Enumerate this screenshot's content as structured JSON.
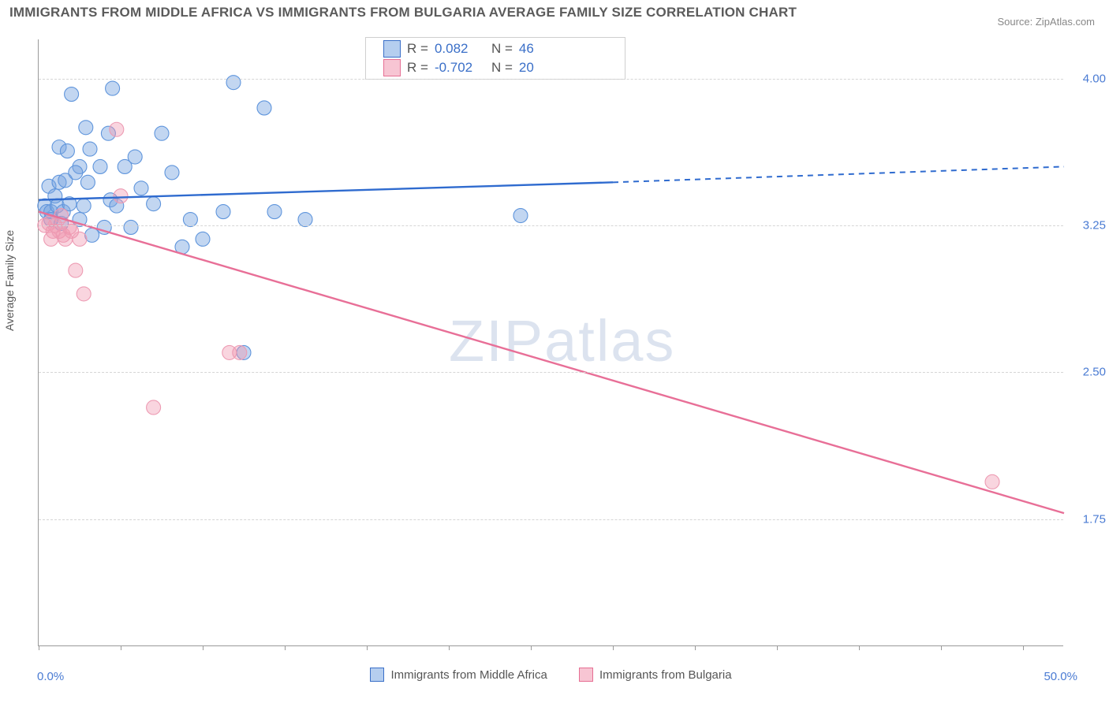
{
  "title": "IMMIGRANTS FROM MIDDLE AFRICA VS IMMIGRANTS FROM BULGARIA AVERAGE FAMILY SIZE CORRELATION CHART",
  "source": "Source: ZipAtlas.com",
  "watermark_a": "ZIP",
  "watermark_b": "atlas",
  "ylabel": "Average Family Size",
  "chart": {
    "type": "scatter",
    "background_color": "#ffffff",
    "x_min": 0.0,
    "x_max": 50.0,
    "x_min_label": "0.0%",
    "x_max_label": "50.0%",
    "x_tick_positions": [
      0,
      4,
      8,
      12,
      16,
      20,
      24,
      28,
      32,
      36,
      40,
      44,
      48
    ],
    "y_min": 1.1,
    "y_max": 4.2,
    "y_ticks": [
      4.0,
      3.25,
      2.5,
      1.75
    ],
    "y_tick_labels": [
      "4.00",
      "3.25",
      "2.50",
      "1.75"
    ],
    "grid_color": "#d5d5d5",
    "axis_color": "#9a9a9a",
    "tick_color": "#4a7bd3",
    "marker_radius": 9,
    "series": [
      {
        "name": "Immigrants from Middle Africa",
        "color_fill": "rgba(120,165,225,0.45)",
        "color_stroke": "#5f95dc",
        "line_color": "#2f6bcf",
        "r_label": "0.082",
        "n_label": "46",
        "trend": {
          "x1": 0,
          "y1": 3.38,
          "x_solid_end": 28,
          "y_solid_end": 3.47,
          "x2": 50,
          "y2": 3.55
        },
        "points": [
          [
            0.3,
            3.35
          ],
          [
            0.4,
            3.32
          ],
          [
            0.5,
            3.45
          ],
          [
            0.6,
            3.32
          ],
          [
            0.6,
            3.28
          ],
          [
            0.8,
            3.4
          ],
          [
            0.9,
            3.35
          ],
          [
            1.0,
            3.65
          ],
          [
            1.0,
            3.47
          ],
          [
            1.1,
            3.26
          ],
          [
            1.2,
            3.32
          ],
          [
            1.3,
            3.48
          ],
          [
            1.4,
            3.63
          ],
          [
            1.5,
            3.36
          ],
          [
            1.6,
            3.92
          ],
          [
            2.0,
            3.55
          ],
          [
            2.2,
            3.35
          ],
          [
            2.3,
            3.75
          ],
          [
            2.4,
            3.47
          ],
          [
            2.5,
            3.64
          ],
          [
            2.6,
            3.2
          ],
          [
            3.0,
            3.55
          ],
          [
            3.2,
            3.24
          ],
          [
            3.4,
            3.72
          ],
          [
            3.5,
            3.38
          ],
          [
            3.6,
            3.95
          ],
          [
            3.8,
            3.35
          ],
          [
            4.2,
            3.55
          ],
          [
            4.5,
            3.24
          ],
          [
            4.7,
            3.6
          ],
          [
            5.0,
            3.44
          ],
          [
            5.6,
            3.36
          ],
          [
            6.0,
            3.72
          ],
          [
            6.5,
            3.52
          ],
          [
            7.0,
            3.14
          ],
          [
            7.4,
            3.28
          ],
          [
            8.0,
            3.18
          ],
          [
            9.0,
            3.32
          ],
          [
            9.5,
            3.98
          ],
          [
            10.0,
            2.6
          ],
          [
            11.0,
            3.85
          ],
          [
            11.5,
            3.32
          ],
          [
            13.0,
            3.28
          ],
          [
            23.5,
            3.3
          ],
          [
            2.0,
            3.28
          ],
          [
            1.8,
            3.52
          ]
        ]
      },
      {
        "name": "Immigrants from Bulgaria",
        "color_fill": "rgba(240,150,175,0.40)",
        "color_stroke": "#ed9bb3",
        "line_color": "#e86f97",
        "r_label": "-0.702",
        "n_label": "20",
        "trend": {
          "x1": 0,
          "y1": 3.32,
          "x_solid_end": 50,
          "y_solid_end": 1.78,
          "x2": 50,
          "y2": 1.78
        },
        "points": [
          [
            0.3,
            3.25
          ],
          [
            0.5,
            3.26
          ],
          [
            0.6,
            3.18
          ],
          [
            0.7,
            3.22
          ],
          [
            0.8,
            3.25
          ],
          [
            1.0,
            3.22
          ],
          [
            1.1,
            3.3
          ],
          [
            1.2,
            3.2
          ],
          [
            1.3,
            3.18
          ],
          [
            1.5,
            3.24
          ],
          [
            1.6,
            3.22
          ],
          [
            1.8,
            3.02
          ],
          [
            2.0,
            3.18
          ],
          [
            2.2,
            2.9
          ],
          [
            3.8,
            3.74
          ],
          [
            4.0,
            3.4
          ],
          [
            5.6,
            2.32
          ],
          [
            9.3,
            2.6
          ],
          [
            9.8,
            2.6
          ],
          [
            46.5,
            1.94
          ]
        ]
      }
    ]
  },
  "legend_box": {
    "r_prefix": "R =",
    "n_prefix": "N ="
  },
  "text_colors": {
    "title": "#5b5b5b",
    "source": "#888888",
    "label": "#555555"
  }
}
